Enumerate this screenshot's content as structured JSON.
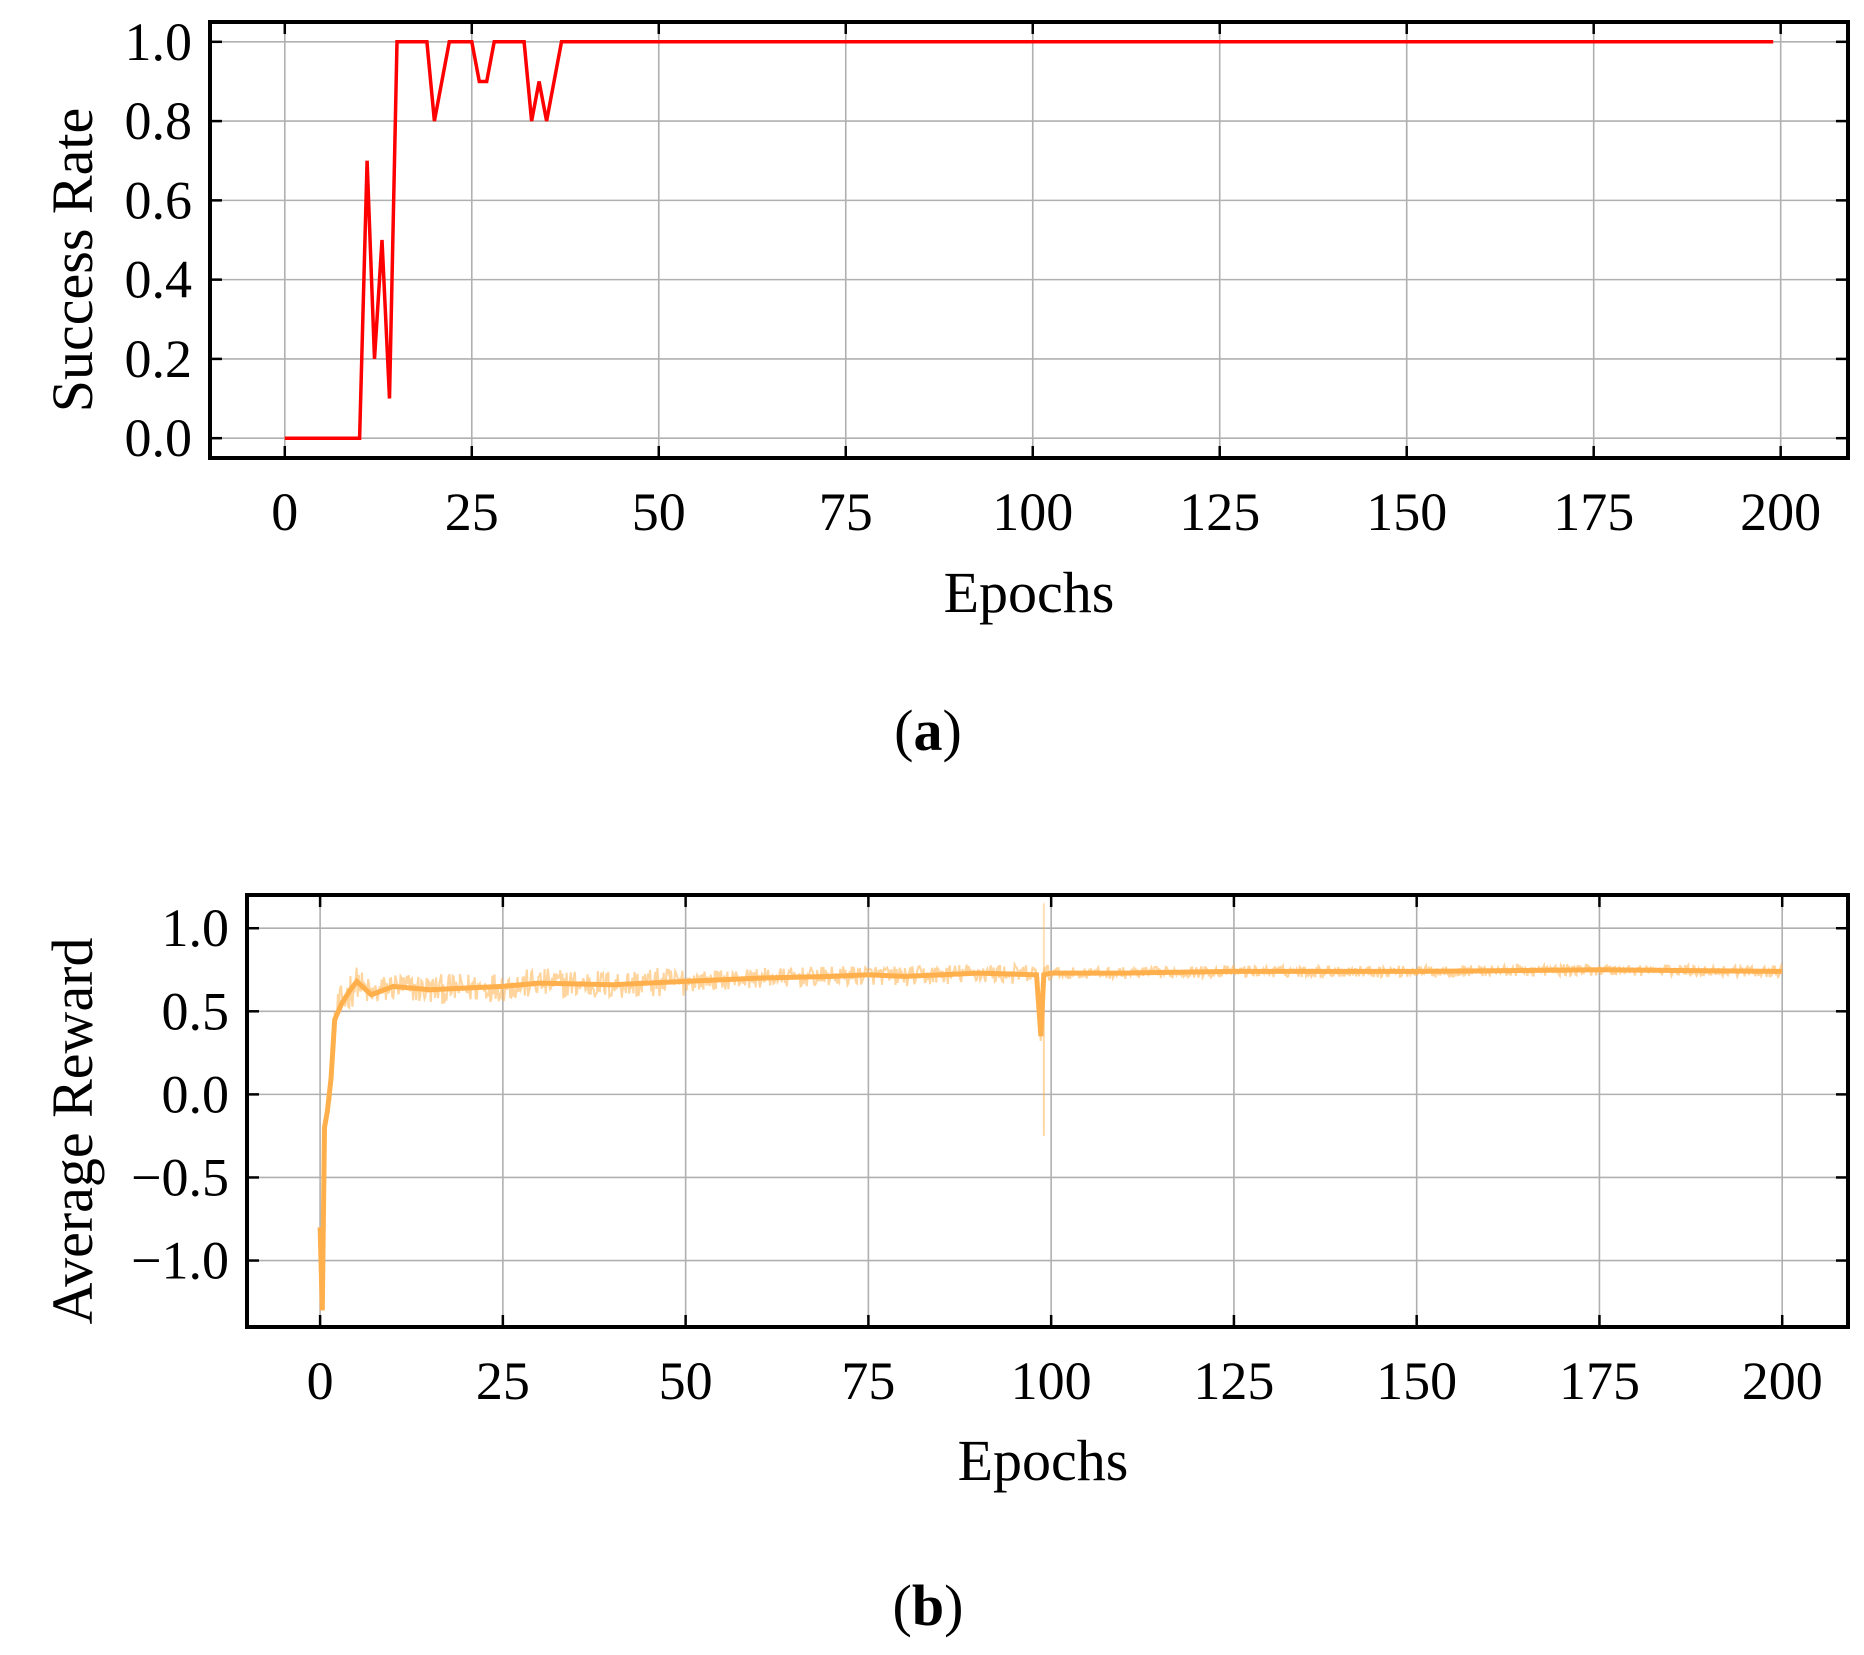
{
  "chart_data": [
    {
      "panel_label": "a",
      "type": "line",
      "xlabel": "Epochs",
      "ylabel": "Success Rate",
      "xlim": [
        -10,
        209
      ],
      "ylim": [
        -0.05,
        1.05
      ],
      "xticks": [
        0,
        25,
        50,
        75,
        100,
        125,
        150,
        175,
        200
      ],
      "xtick_labels": [
        "0",
        "25",
        "50",
        "75",
        "100",
        "125",
        "150",
        "175",
        "200"
      ],
      "yticks": [
        0.0,
        0.2,
        0.4,
        0.6,
        0.8,
        1.0
      ],
      "ytick_labels": [
        "0.0",
        "0.2",
        "0.4",
        "0.6",
        "0.8",
        "1.0"
      ],
      "grid": true,
      "series": [
        {
          "color": "#ff0000",
          "x": [
            0,
            10,
            11,
            12,
            13,
            14,
            15,
            19,
            20,
            22,
            25,
            26,
            27,
            28,
            32,
            33,
            34,
            35,
            37,
            199
          ],
          "y": [
            0.0,
            0.0,
            0.7,
            0.2,
            0.5,
            0.1,
            1.0,
            1.0,
            0.8,
            1.0,
            1.0,
            0.9,
            0.9,
            1.0,
            1.0,
            0.8,
            0.9,
            0.8,
            1.0,
            1.0
          ]
        }
      ]
    },
    {
      "panel_label": "b",
      "type": "line",
      "xlabel": "Epochs",
      "ylabel": "Average Reward",
      "xlim": [
        -10,
        209
      ],
      "ylim": [
        -1.4,
        1.2
      ],
      "xticks": [
        0,
        25,
        50,
        75,
        100,
        125,
        150,
        175,
        200
      ],
      "xtick_labels": [
        "0",
        "25",
        "50",
        "75",
        "100",
        "125",
        "150",
        "175",
        "200"
      ],
      "yticks": [
        -1.0,
        -0.5,
        0.0,
        0.5,
        1.0
      ],
      "ytick_labels": [
        "−1.0",
        "−0.5",
        "0.0",
        "0.5",
        "1.0"
      ],
      "grid": true,
      "series": [
        {
          "color": "#ffb04c",
          "x": [
            0,
            0.3,
            0.6,
            1,
            1.5,
            2,
            3,
            4,
            5,
            7,
            10,
            15,
            20,
            25,
            30,
            40,
            50,
            60,
            70,
            75,
            80,
            90,
            98,
            98.6,
            99,
            100,
            110,
            125,
            150,
            175,
            200
          ],
          "y": [
            -0.8,
            -1.3,
            -0.2,
            -0.1,
            0.1,
            0.45,
            0.55,
            0.62,
            0.68,
            0.6,
            0.65,
            0.63,
            0.64,
            0.65,
            0.67,
            0.66,
            0.68,
            0.7,
            0.71,
            0.72,
            0.71,
            0.73,
            0.72,
            0.35,
            0.72,
            0.73,
            0.73,
            0.74,
            0.74,
            0.75,
            0.74
          ]
        }
      ]
    }
  ]
}
